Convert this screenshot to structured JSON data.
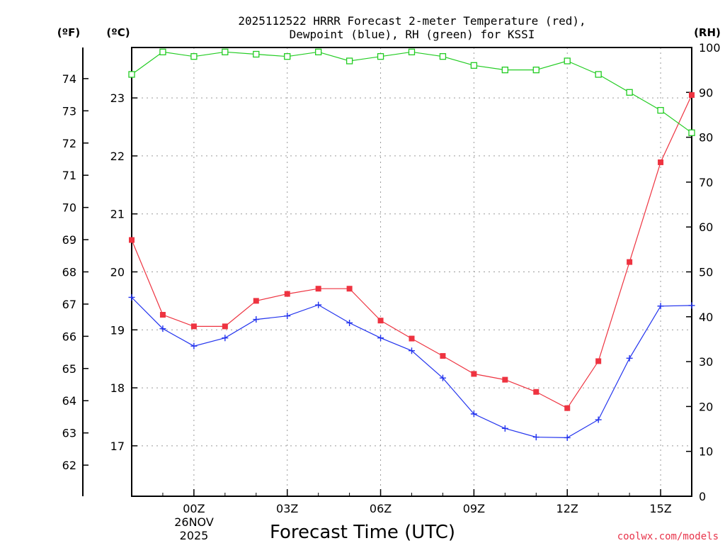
{
  "chart_data": {
    "type": "line",
    "title_line1": "2025112522 HRRR Forecast 2-meter Temperature (red),",
    "title_line2": "Dewpoint (blue), RH (green) for KSSI",
    "xlabel": "Forecast Time (UTC)",
    "date_line1": "26NOV",
    "date_line2": "2025",
    "credit": "coolwx.com/models",
    "unit_f": "(ºF)",
    "unit_c": "(ºC)",
    "unit_rh": "(RH)",
    "x_tick_labels": [
      {
        "hour": 2,
        "label": "00Z"
      },
      {
        "hour": 5,
        "label": "03Z"
      },
      {
        "hour": 8,
        "label": "06Z"
      },
      {
        "hour": 11,
        "label": "09Z"
      },
      {
        "hour": 14,
        "label": "12Z"
      },
      {
        "hour": 17,
        "label": "15Z"
      }
    ],
    "x_range_hours": [
      0,
      18
    ],
    "c_range": [
      16.13,
      23.87
    ],
    "c_ticks": [
      "17",
      "18",
      "19",
      "20",
      "21",
      "22",
      "23"
    ],
    "f_ticks": [
      "62",
      "63",
      "64",
      "65",
      "66",
      "67",
      "68",
      "69",
      "70",
      "71",
      "72",
      "73",
      "74"
    ],
    "rh_range": [
      0,
      100
    ],
    "rh_ticks": [
      "0",
      "10",
      "20",
      "30",
      "40",
      "50",
      "60",
      "70",
      "80",
      "90",
      "100"
    ],
    "grid": true,
    "colors": {
      "temperature": "#ee3340",
      "dewpoint": "#2233ee",
      "rh": "#22cc22"
    },
    "series": [
      {
        "name": "Temperature",
        "unit": "C",
        "marker": "square",
        "values": [
          20.55,
          19.26,
          19.06,
          19.06,
          19.5,
          19.62,
          19.71,
          19.71,
          19.16,
          18.85,
          18.55,
          18.24,
          18.14,
          17.93,
          17.65,
          18.46,
          20.17,
          21.89,
          23.05
        ]
      },
      {
        "name": "Dewpoint",
        "unit": "C",
        "marker": "plus",
        "values": [
          19.56,
          19.02,
          18.72,
          18.86,
          19.18,
          19.24,
          19.43,
          19.12,
          18.86,
          18.64,
          18.17,
          17.55,
          17.3,
          17.15,
          17.14,
          17.45,
          18.51,
          19.41,
          19.42
        ]
      },
      {
        "name": "RH",
        "unit": "%",
        "marker": "open-square",
        "values": [
          94,
          99,
          98,
          99,
          98.5,
          98,
          99,
          97,
          98,
          99,
          98,
          96,
          95,
          95,
          97,
          94,
          90,
          86,
          81
        ]
      }
    ]
  }
}
